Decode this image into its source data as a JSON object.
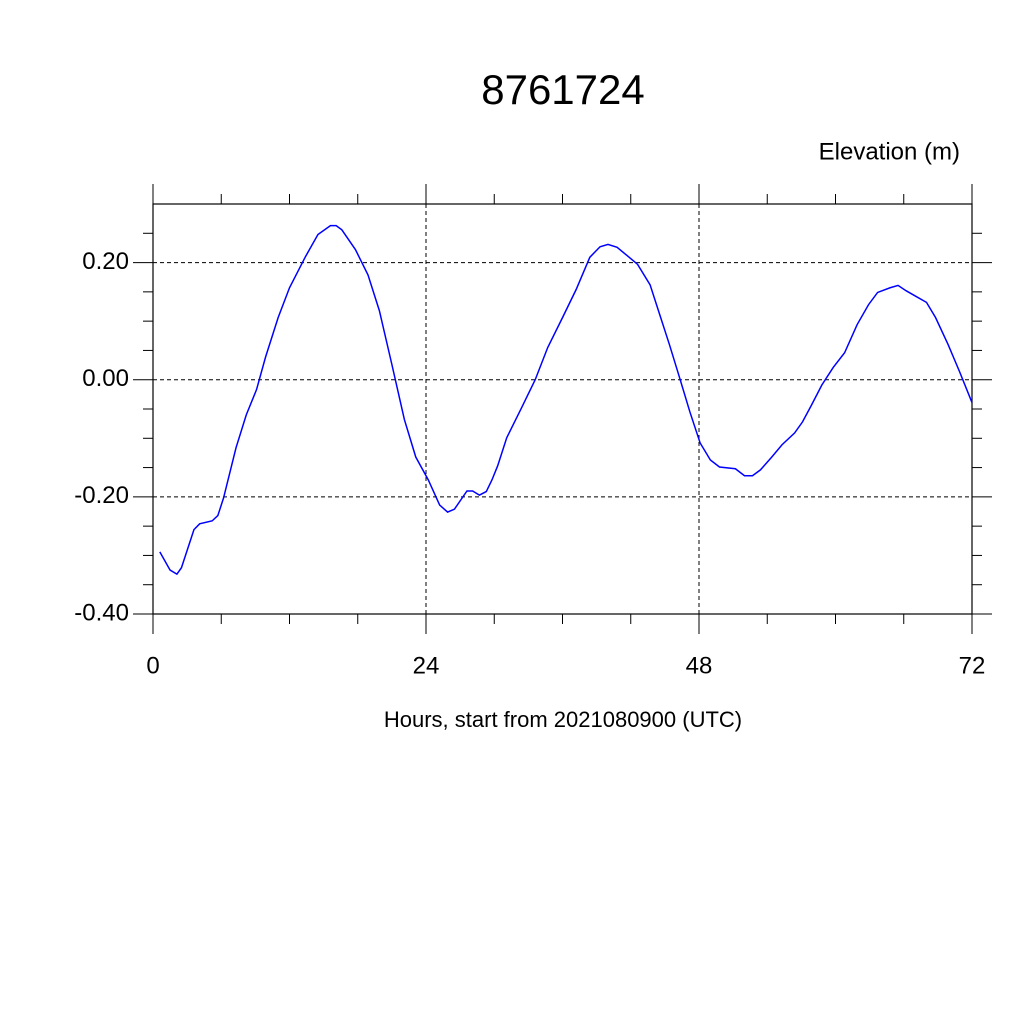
{
  "chart_data": {
    "type": "line",
    "title": "8761724",
    "y_label": "Elevation (m)",
    "x_label": "Hours, start from 2021080900 (UTC)",
    "xlim": [
      0,
      72
    ],
    "xticks": [
      0,
      24,
      48,
      72
    ],
    "xminorticks": [
      6,
      12,
      18,
      30,
      36,
      42,
      54,
      60,
      66
    ],
    "ylim": [
      -0.4,
      0.3
    ],
    "yticks": [
      {
        "value": -0.4,
        "label": "-0.40"
      },
      {
        "value": -0.2,
        "label": "-0.20"
      },
      {
        "value": 0,
        "label": "0.00"
      },
      {
        "value": 0.2,
        "label": "0.20"
      }
    ],
    "yminorticks": [
      -0.35,
      -0.3,
      -0.25,
      -0.15,
      -0.1,
      -0.05,
      0.05,
      0.1,
      0.15,
      0.25
    ],
    "grid": true,
    "series": [
      {
        "color": "#0000ff",
        "x": [
          0.6,
          1.5,
          2.1,
          2.5,
          3.6,
          4.1,
          5.2,
          5.7,
          6.2,
          7.3,
          8.2,
          9.1,
          9.9,
          11.0,
          12.0,
          13.4,
          14.5,
          15.6,
          16.1,
          16.6,
          17.8,
          18.9,
          19.9,
          21.0,
          22.1,
          23.1,
          24.2,
          25.2,
          25.9,
          26.5,
          27.6,
          28.1,
          28.7,
          29.3,
          29.8,
          30.3,
          31.1,
          32.4,
          33.6,
          34.7,
          36.0,
          37.2,
          38.4,
          39.3,
          40.0,
          40.8,
          41.8,
          42.6,
          43.7,
          44.6,
          45.4,
          46.3,
          47.2,
          48.1,
          49.0,
          49.8,
          51.2,
          52.0,
          52.7,
          53.4,
          54.4,
          55.3,
          56.4,
          57.1,
          57.9,
          58.8,
          59.8,
          60.8,
          61.9,
          62.9,
          63.7,
          64.8,
          65.5,
          66.2,
          67.1,
          68.0,
          68.8,
          69.9,
          70.9,
          72.0
        ],
        "values": [
          -0.294,
          -0.325,
          -0.332,
          -0.321,
          -0.256,
          -0.246,
          -0.241,
          -0.232,
          -0.202,
          -0.116,
          -0.06,
          -0.017,
          0.039,
          0.106,
          0.157,
          0.21,
          0.248,
          0.263,
          0.263,
          0.256,
          0.222,
          0.179,
          0.118,
          0.026,
          -0.068,
          -0.132,
          -0.171,
          -0.214,
          -0.226,
          -0.221,
          -0.19,
          -0.19,
          -0.197,
          -0.191,
          -0.171,
          -0.147,
          -0.099,
          -0.048,
          0.0,
          0.055,
          0.106,
          0.154,
          0.209,
          0.227,
          0.231,
          0.226,
          0.21,
          0.197,
          0.162,
          0.108,
          0.06,
          0.003,
          -0.055,
          -0.108,
          -0.137,
          -0.149,
          -0.152,
          -0.164,
          -0.164,
          -0.154,
          -0.132,
          -0.111,
          -0.091,
          -0.072,
          -0.043,
          -0.009,
          0.021,
          0.046,
          0.094,
          0.128,
          0.149,
          0.157,
          0.161,
          0.152,
          0.142,
          0.132,
          0.106,
          0.06,
          0.014,
          -0.039
        ]
      }
    ]
  }
}
